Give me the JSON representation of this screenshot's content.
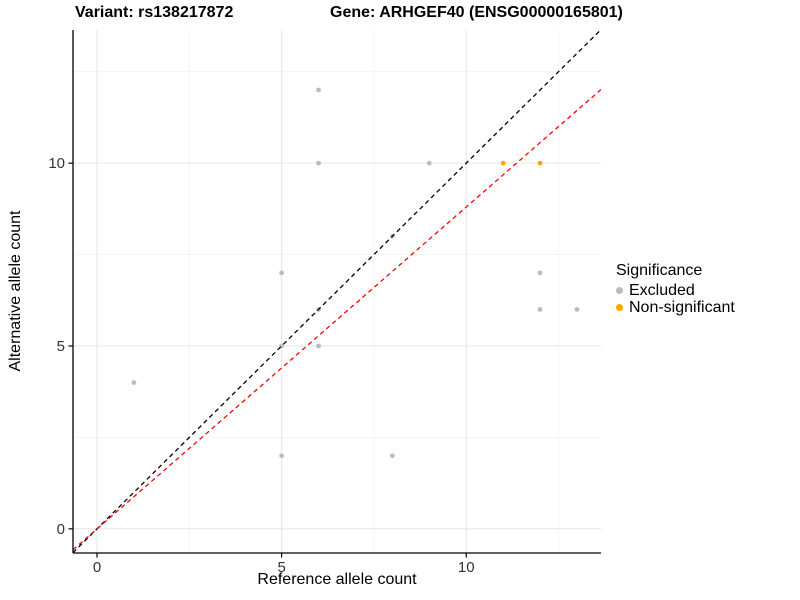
{
  "header": {
    "title_variant": "Variant: rs138217872",
    "title_gene": "Gene: ARHGEF40 (ENSG00000165801)"
  },
  "chart_data": {
    "type": "scatter",
    "xlabel": "Reference allele count",
    "ylabel": "Alternative allele count",
    "x_domain": [
      -0.65,
      13.65
    ],
    "y_domain": [
      -0.66,
      13.64
    ],
    "xticks": [
      0,
      5,
      10
    ],
    "yticks": [
      0,
      5,
      10
    ],
    "x_minor_ticks": [
      2.5,
      7.5,
      12.5
    ],
    "y_minor_ticks": [
      2.5,
      7.5,
      12.5
    ],
    "grid": "major-and-minor",
    "legend": {
      "title": "Significance",
      "position": "right"
    },
    "series": [
      {
        "name": "Excluded",
        "color": "#bcbcbc",
        "points": [
          [
            1,
            4
          ],
          [
            5,
            2
          ],
          [
            5,
            5
          ],
          [
            5,
            7
          ],
          [
            6,
            5
          ],
          [
            6,
            6
          ],
          [
            6,
            10
          ],
          [
            6,
            12
          ],
          [
            8,
            2
          ],
          [
            8,
            8
          ],
          [
            9,
            10
          ],
          [
            12,
            6
          ],
          [
            12,
            7
          ],
          [
            13,
            6
          ]
        ]
      },
      {
        "name": "Non-significant",
        "color": "#FFA500",
        "points": [
          [
            11,
            10
          ],
          [
            12,
            10
          ]
        ]
      }
    ],
    "lines": [
      {
        "name": "identity-line",
        "slope": 1,
        "intercept": 0,
        "color": "#000000",
        "style": "dashed"
      },
      {
        "name": "expected-ratio-line",
        "slope": 0.88,
        "intercept": 0,
        "color": "#FF0000",
        "style": "dashed"
      }
    ],
    "colors": {
      "grid_major": "#e6e6e6",
      "grid_minor": "#f3f3f3",
      "axis": "#000000",
      "tick_label": "#333333"
    }
  }
}
